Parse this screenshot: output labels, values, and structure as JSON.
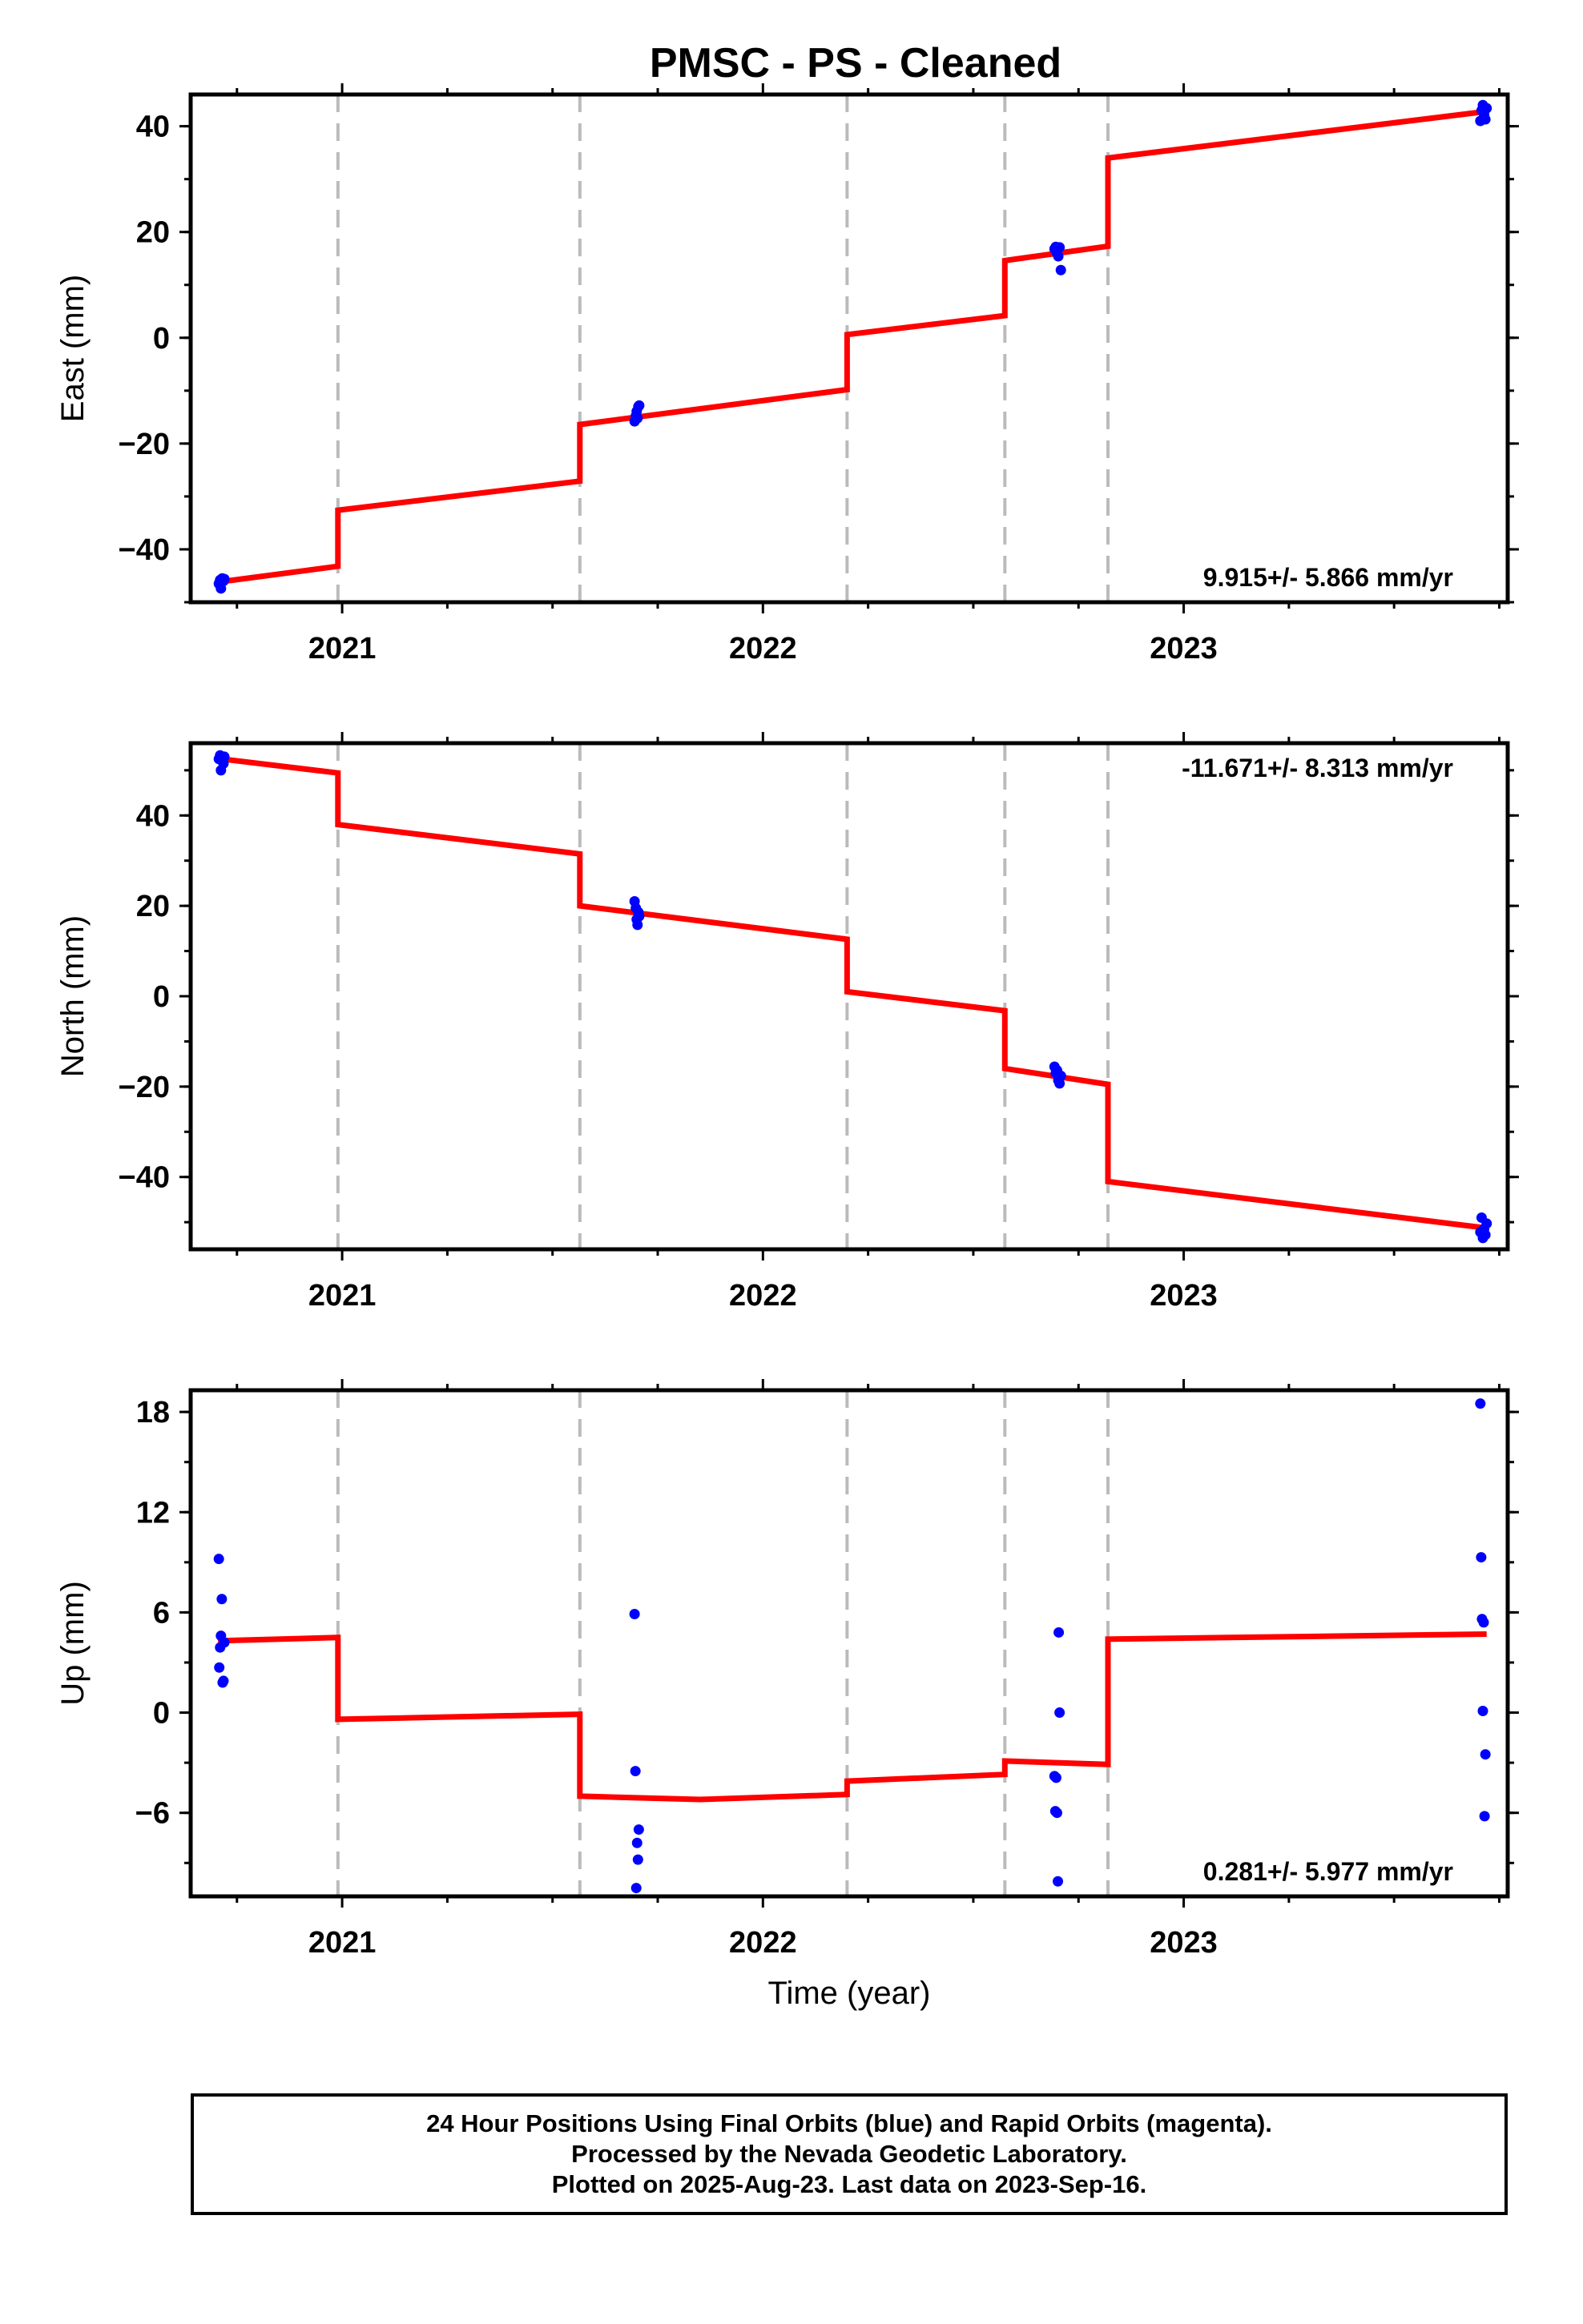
{
  "title": "PMSC  - PS - Cleaned",
  "footer": {
    "line1": "24 Hour Positions Using Final Orbits (blue) and Rapid Orbits (magenta).",
    "line2": "Processed by the Nevada Geodetic Laboratory.",
    "line3": "Plotted on 2025-Aug-23. Last data on 2023-Sep-16."
  },
  "colors": {
    "points": "#0000ff",
    "model": "#ff0000",
    "breaks": "#bbbbbb",
    "frame": "#000000"
  },
  "chart_data": [
    {
      "type": "scatter",
      "ylabel": "East (mm)",
      "xlabel": "",
      "rate": "9.915+/- 5.866 mm/yr",
      "rate_position": "bottom-right",
      "xlim": [
        2020.64,
        2023.77
      ],
      "ylim": [
        -50,
        46
      ],
      "yticks": [
        -40,
        -20,
        0,
        20,
        40
      ],
      "ytick_labels": [
        "−40",
        "−20",
        "0",
        "20",
        "40"
      ],
      "xticks": [
        2021,
        2022,
        2023
      ],
      "xtick_labels": [
        "2021",
        "2022",
        "2023"
      ],
      "breaks": [
        2020.99,
        2021.565,
        2022.2,
        2022.575,
        2022.82
      ],
      "points": [
        [
          2020.707,
          -46.5
        ],
        [
          2020.71,
          -45.8
        ],
        [
          2020.712,
          -47.4
        ],
        [
          2020.715,
          -45.5
        ],
        [
          2020.718,
          -46.0
        ],
        [
          2020.72,
          -45.6
        ],
        [
          2021.695,
          -15.8
        ],
        [
          2021.698,
          -14.8
        ],
        [
          2021.7,
          -13.9
        ],
        [
          2021.702,
          -15.2
        ],
        [
          2021.704,
          -13.0
        ],
        [
          2021.706,
          -12.8
        ],
        [
          2022.693,
          16.8
        ],
        [
          2022.696,
          17.2
        ],
        [
          2022.699,
          16.0
        ],
        [
          2022.702,
          15.4
        ],
        [
          2022.705,
          17.1
        ],
        [
          2022.708,
          12.8
        ],
        [
          2023.705,
          41.0
        ],
        [
          2023.708,
          43.0
        ],
        [
          2023.711,
          44.0
        ],
        [
          2023.714,
          42.2
        ],
        [
          2023.717,
          41.3
        ],
        [
          2023.72,
          43.4
        ]
      ],
      "model": [
        [
          2020.705,
          -46.2
        ],
        [
          2020.99,
          -43.2
        ],
        [
          2020.99,
          -32.6
        ],
        [
          2021.565,
          -27.1
        ],
        [
          2021.565,
          -16.4
        ],
        [
          2022.2,
          -9.8
        ],
        [
          2022.2,
          0.6
        ],
        [
          2022.575,
          4.2
        ],
        [
          2022.575,
          14.6
        ],
        [
          2022.82,
          17.3
        ],
        [
          2022.82,
          34.0
        ],
        [
          2023.72,
          42.8
        ]
      ]
    },
    {
      "type": "scatter",
      "ylabel": "North (mm)",
      "xlabel": "",
      "rate": "-11.671+/- 8.313 mm/yr",
      "rate_position": "top-right",
      "xlim": [
        2020.64,
        2023.77
      ],
      "ylim": [
        -56,
        56
      ],
      "yticks": [
        -40,
        -20,
        0,
        20,
        40
      ],
      "ytick_labels": [
        "−40",
        "−20",
        "0",
        "20",
        "40"
      ],
      "xticks": [
        2021,
        2022,
        2023
      ],
      "xtick_labels": [
        "2021",
        "2022",
        "2023"
      ],
      "breaks": [
        2020.99,
        2021.565,
        2022.2,
        2022.575,
        2022.82
      ],
      "points": [
        [
          2020.707,
          52.5
        ],
        [
          2020.71,
          53.3
        ],
        [
          2020.712,
          50.0
        ],
        [
          2020.715,
          52.0
        ],
        [
          2020.718,
          51.5
        ],
        [
          2020.72,
          53.0
        ],
        [
          2021.695,
          21.0
        ],
        [
          2021.698,
          19.5
        ],
        [
          2021.7,
          17.0
        ],
        [
          2021.702,
          15.8
        ],
        [
          2021.704,
          18.6
        ],
        [
          2021.706,
          17.7
        ],
        [
          2022.693,
          -15.6
        ],
        [
          2022.696,
          -17.0
        ],
        [
          2022.699,
          -16.4
        ],
        [
          2022.702,
          -18.6
        ],
        [
          2022.705,
          -19.3
        ],
        [
          2022.708,
          -17.6
        ],
        [
          2023.705,
          -52.2
        ],
        [
          2023.708,
          -49.0
        ],
        [
          2023.711,
          -53.5
        ],
        [
          2023.714,
          -51.5
        ],
        [
          2023.717,
          -52.8
        ],
        [
          2023.72,
          -50.3
        ]
      ],
      "model": [
        [
          2020.705,
          52.6
        ],
        [
          2020.99,
          49.4
        ],
        [
          2020.99,
          38.0
        ],
        [
          2021.565,
          31.5
        ],
        [
          2021.565,
          20.0
        ],
        [
          2022.2,
          12.6
        ],
        [
          2022.2,
          1.0
        ],
        [
          2022.575,
          -3.2
        ],
        [
          2022.575,
          -16.0
        ],
        [
          2022.82,
          -19.5
        ],
        [
          2022.82,
          -41.0
        ],
        [
          2023.72,
          -51.3
        ]
      ]
    },
    {
      "type": "scatter",
      "ylabel": "Up (mm)",
      "xlabel": "Time (year)",
      "rate": "0.281+/- 5.977 mm/yr",
      "rate_position": "bottom-right",
      "xlim": [
        2020.64,
        2023.77
      ],
      "ylim": [
        -11,
        19.3
      ],
      "yticks": [
        -6,
        0,
        6,
        12,
        18
      ],
      "ytick_labels": [
        "−6",
        "0",
        "6",
        "12",
        "18"
      ],
      "xticks": [
        2021,
        2022,
        2023
      ],
      "xtick_labels": [
        "2021",
        "2022",
        "2023"
      ],
      "breaks": [
        2020.99,
        2021.565,
        2022.2,
        2022.575,
        2022.82
      ],
      "points": [
        [
          2020.707,
          9.2
        ],
        [
          2020.708,
          2.7
        ],
        [
          2020.71,
          3.9
        ],
        [
          2020.712,
          4.6
        ],
        [
          2020.714,
          6.8
        ],
        [
          2020.716,
          1.8
        ],
        [
          2020.718,
          1.9
        ],
        [
          2020.72,
          4.2
        ],
        [
          2021.695,
          5.9
        ],
        [
          2021.697,
          -3.5
        ],
        [
          2021.699,
          -10.5
        ],
        [
          2021.701,
          -7.8
        ],
        [
          2021.703,
          -8.8
        ],
        [
          2021.705,
          -7.0
        ],
        [
          2022.693,
          -3.8
        ],
        [
          2022.695,
          -5.9
        ],
        [
          2022.697,
          -3.9
        ],
        [
          2022.699,
          -6.0
        ],
        [
          2022.701,
          -10.1
        ],
        [
          2022.703,
          4.8
        ],
        [
          2022.705,
          0.0
        ],
        [
          2023.705,
          18.5
        ],
        [
          2023.707,
          9.3
        ],
        [
          2023.709,
          5.6
        ],
        [
          2023.711,
          0.1
        ],
        [
          2023.713,
          5.4
        ],
        [
          2023.715,
          -6.2
        ],
        [
          2023.717,
          -2.5
        ]
      ],
      "model": [
        [
          2020.705,
          4.3
        ],
        [
          2020.99,
          4.5
        ],
        [
          2020.99,
          -0.4
        ],
        [
          2021.565,
          -0.1
        ],
        [
          2021.565,
          -5.0
        ],
        [
          2021.85,
          -5.2
        ],
        [
          2022.2,
          -4.9
        ],
        [
          2022.2,
          -4.1
        ],
        [
          2022.575,
          -3.7
        ],
        [
          2022.575,
          -2.9
        ],
        [
          2022.82,
          -3.1
        ],
        [
          2022.82,
          4.4
        ],
        [
          2023.72,
          4.7
        ]
      ]
    }
  ]
}
